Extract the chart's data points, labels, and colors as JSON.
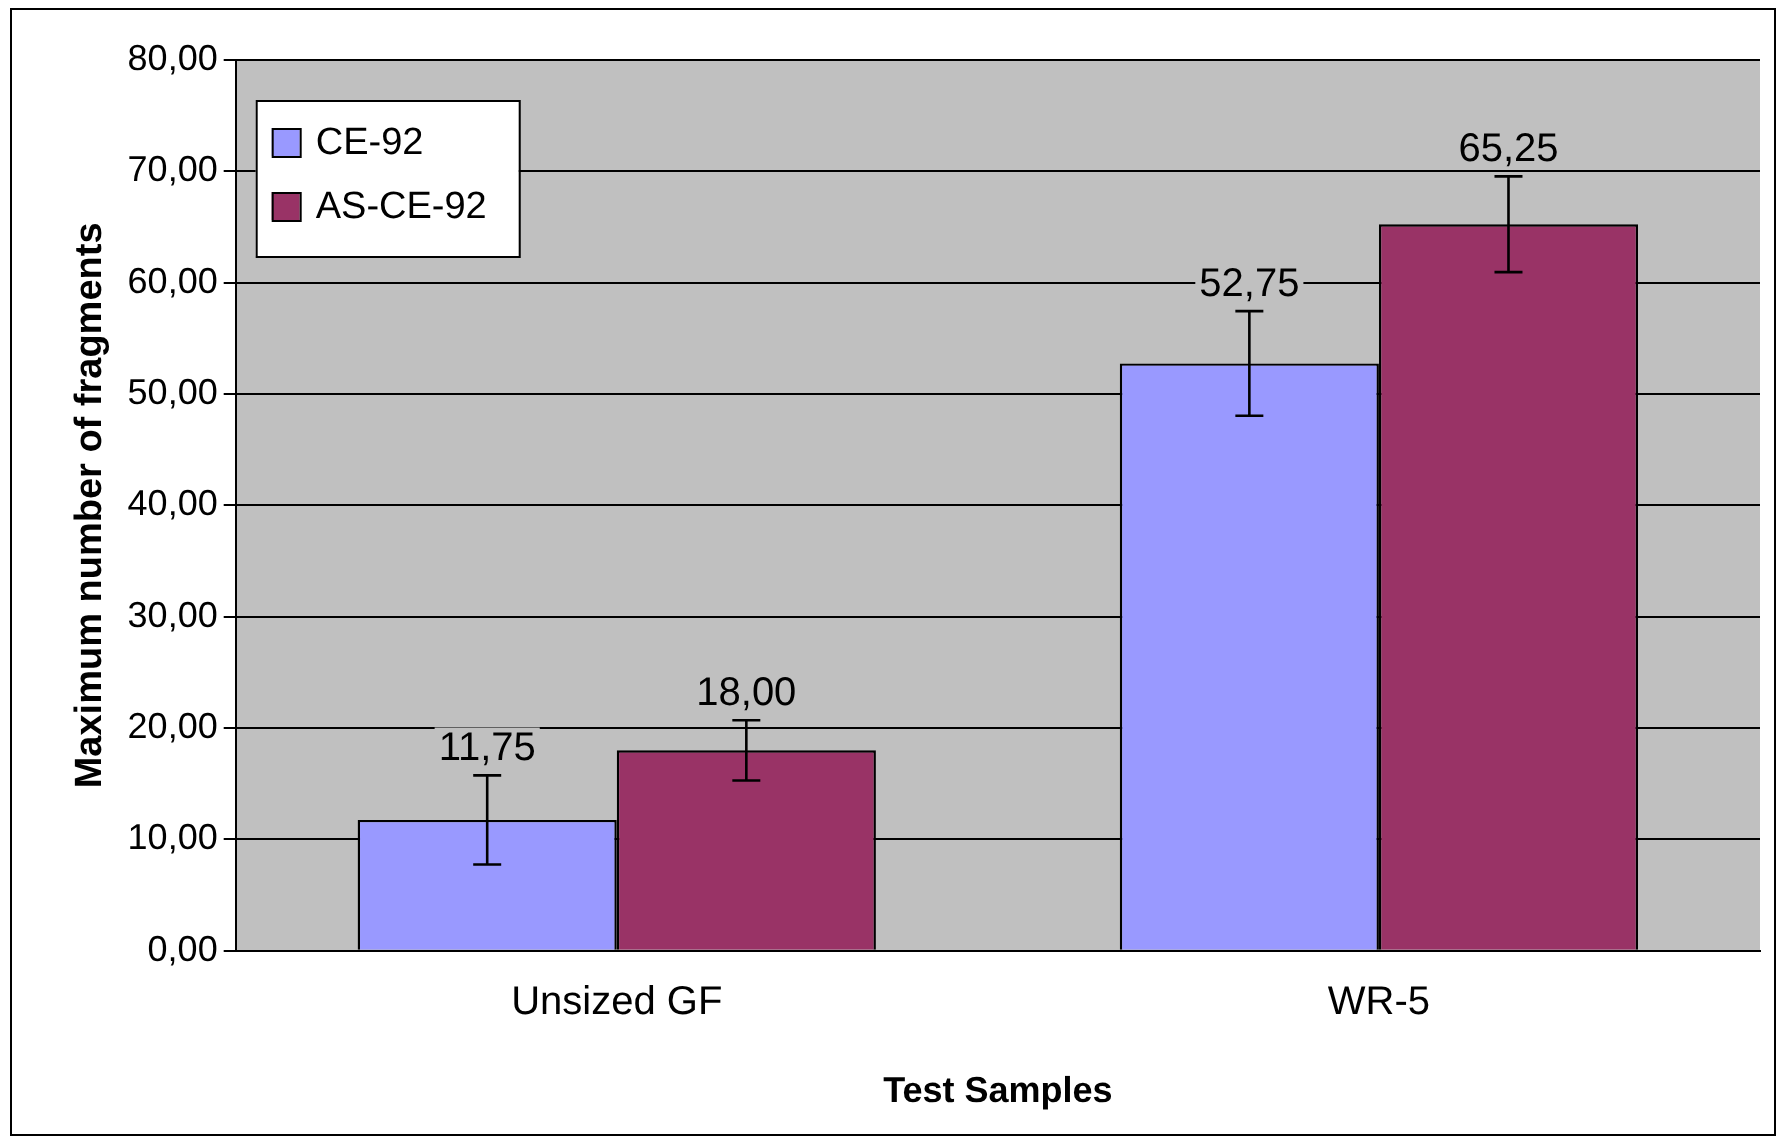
{
  "chart_data": {
    "type": "bar",
    "xlabel": "Test Samples",
    "ylabel": "Maximum number of fragments",
    "categories": [
      "Unsized GF",
      "WR-5"
    ],
    "series": [
      {
        "name": "CE-92",
        "color": "#9999ff",
        "values": [
          11.75,
          52.75
        ],
        "errors": [
          4.0,
          4.7
        ],
        "value_labels": [
          "11,75",
          "52,75"
        ]
      },
      {
        "name": "AS-CE-92",
        "color": "#993366",
        "values": [
          18.0,
          65.25
        ],
        "errors": [
          2.7,
          4.3
        ],
        "value_labels": [
          "18,00",
          "65,25"
        ]
      }
    ],
    "ylim": [
      0,
      80
    ],
    "yticks": [
      {
        "value": 0,
        "label": "0,00"
      },
      {
        "value": 10,
        "label": "10,00"
      },
      {
        "value": 20,
        "label": "20,00"
      },
      {
        "value": 30,
        "label": "30,00"
      },
      {
        "value": 40,
        "label": "40,00"
      },
      {
        "value": 50,
        "label": "50,00"
      },
      {
        "value": 60,
        "label": "60,00"
      },
      {
        "value": 70,
        "label": "70,00"
      },
      {
        "value": 80,
        "label": "80,00"
      }
    ],
    "grid": "y",
    "legend": "top left"
  }
}
